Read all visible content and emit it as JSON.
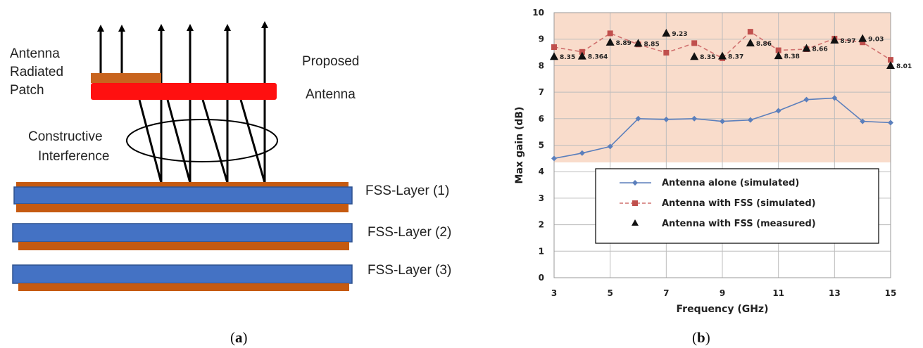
{
  "panel_a": {
    "labels": {
      "antenna_patch": [
        "Antenna",
        "Radiated",
        "Patch"
      ],
      "proposed_antenna": [
        "Proposed",
        "Antenna"
      ],
      "interference": [
        "Constructive",
        "Interference"
      ],
      "fss_layers": [
        "FSS-Layer (1)",
        "FSS-Layer (2)",
        "FSS-Layer (3)"
      ]
    },
    "colors": {
      "patch": "#c8641e",
      "antenna": "#ff1010",
      "fss_blue": "#4472c4",
      "fss_copper": "#c55a11"
    },
    "caption": {
      "open": "(",
      "letter": "a",
      "close": ")"
    }
  },
  "panel_b": {
    "caption": {
      "open": "(",
      "letter": "b",
      "close": ")"
    }
  },
  "chart_data": {
    "type": "line",
    "title": "",
    "xlabel": "Frequency (GHz)",
    "ylabel": "Max gain (dB)",
    "xlim": [
      3,
      15
    ],
    "ylim": [
      0,
      10
    ],
    "x_ticks": [
      3,
      5,
      7,
      9,
      11,
      13,
      15
    ],
    "y_ticks": [
      0,
      1,
      2,
      3,
      4,
      5,
      6,
      7,
      8,
      9,
      10
    ],
    "grid": true,
    "shaded_band": {
      "from": 4.35,
      "to": 10,
      "color": "#f9dccb"
    },
    "legend_position": "center",
    "series": [
      {
        "name": "Antenna alone (simulated)",
        "color": "#5b7fbc",
        "marker": "diamond",
        "dash": "solid",
        "x": [
          3,
          4,
          5,
          6,
          7,
          8,
          9,
          10,
          11,
          12,
          13,
          14,
          15
        ],
        "y": [
          4.5,
          4.7,
          4.95,
          6.0,
          5.97,
          6.0,
          5.9,
          5.95,
          6.3,
          6.72,
          6.78,
          5.9,
          5.85
        ]
      },
      {
        "name": "Antenna with FSS (simulated)",
        "color": "#d0706e",
        "marker": "square",
        "dash": "dashed",
        "x": [
          3,
          4,
          5,
          6,
          7,
          8,
          9,
          10,
          11,
          12,
          13,
          14,
          15
        ],
        "y": [
          8.7,
          8.52,
          9.22,
          8.8,
          8.49,
          8.85,
          8.28,
          9.28,
          8.58,
          8.62,
          9.02,
          8.88,
          8.22
        ]
      },
      {
        "name": "Antenna with FSS (measured)",
        "color": "#111111",
        "marker": "triangle",
        "dash": "none",
        "x": [
          3,
          4,
          5,
          6,
          7,
          8,
          9,
          10,
          11,
          12,
          13,
          14,
          15
        ],
        "y": [
          8.35,
          8.364,
          8.89,
          8.85,
          9.23,
          8.35,
          8.37,
          8.86,
          8.38,
          8.66,
          8.97,
          9.03,
          8.01
        ],
        "labels": [
          "8.35",
          "8.364",
          "8.89",
          "8.85",
          "9.23",
          "8.35",
          "8.37",
          "8.86",
          "8.38",
          "8.66",
          "8.97",
          "9.03",
          "8.01"
        ]
      }
    ]
  }
}
